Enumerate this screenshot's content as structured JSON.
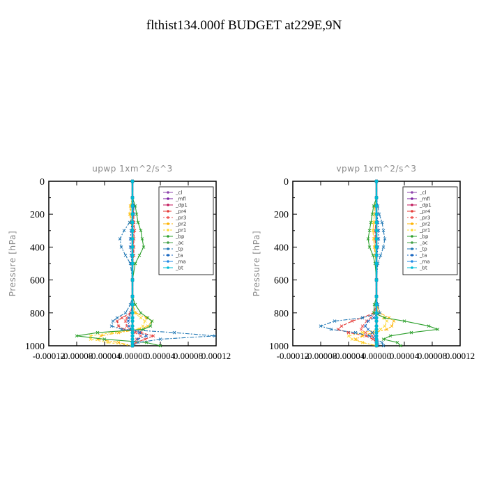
{
  "figure": {
    "title": "flthist134.000f  BUDGET at229E,9N"
  },
  "colors": {
    "_cl": "#8e44ad",
    "_mfl": "#7b1fa2",
    "_dp1": "#c2185b",
    "_pr4": "#e53935",
    "_pr3": "#ef5350",
    "_pr2": "#ffb300",
    "_pr1": "#fdd835",
    "_bp": "#2ca02c",
    "_ac": "#43a047",
    "_tp": "#1f77b4",
    "_ta": "#1565c0",
    "_ma": "#1e88e5",
    "_bt": "#00bcd4"
  },
  "chart_data": [
    {
      "type": "line",
      "title": "upwp   1xm^2/s^3",
      "ylabel": "Pressure [hPa]",
      "xlim": [
        -0.00012,
        0.00012
      ],
      "ylim": [
        0,
        1000
      ],
      "y_reversed": true,
      "xticks": [
        "-0.00012",
        "-0.00008",
        "-0.00004",
        "0.00000",
        "0.00004",
        "0.00008",
        "0.00012"
      ],
      "yticks": [
        "0",
        "200",
        "400",
        "600",
        "800",
        "1000"
      ],
      "legend": [
        "_cl",
        "_mfl",
        "_dp1",
        "_pr4",
        "_pr3",
        "_pr2",
        "_pr1",
        "_bp",
        "_ac",
        "_tp",
        "_ta",
        "_ma",
        "_bt"
      ],
      "legend_position": "top-right",
      "pressure": [
        0,
        100,
        150,
        200,
        250,
        300,
        350,
        400,
        450,
        500,
        600,
        700,
        750,
        800,
        830,
        850,
        880,
        900,
        920,
        940,
        960,
        980,
        1000
      ],
      "series": [
        {
          "name": "_cl",
          "values": [
            0,
            0,
            0,
            0,
            0,
            0,
            0,
            0,
            0,
            0,
            0,
            0,
            0,
            0,
            0,
            0,
            0,
            0,
            0,
            0,
            0,
            0,
            0
          ]
        },
        {
          "name": "_mfl",
          "values": [
            0,
            0,
            0,
            0,
            0,
            0,
            0,
            0,
            0,
            0,
            0,
            0,
            0,
            0,
            0,
            0,
            0,
            0,
            0,
            0,
            0,
            0,
            0
          ]
        },
        {
          "name": "_dp1",
          "values": [
            0,
            0,
            0,
            0,
            0,
            0,
            0,
            0,
            0,
            0,
            0,
            0,
            0,
            0,
            0,
            0,
            0,
            0,
            0,
            0,
            0,
            0,
            0
          ]
        },
        {
          "name": "_pr4",
          "values": [
            0,
            0,
            0,
            2e-06,
            2e-06,
            3e-06,
            2e-06,
            2e-06,
            2e-06,
            0,
            0,
            0,
            0,
            -3e-06,
            -1.5e-05,
            -2.2e-05,
            -2e-05,
            -1.2e-05,
            1.2e-05,
            3e-05,
            1.8e-05,
            5e-06,
            0
          ]
        },
        {
          "name": "_pr3",
          "values": [
            0,
            0,
            0,
            0,
            1e-06,
            2e-06,
            2e-06,
            1e-06,
            1e-06,
            0,
            0,
            0,
            0,
            -2e-06,
            -8e-06,
            -1e-05,
            -8e-06,
            -4e-06,
            4e-06,
            1.2e-05,
            6e-06,
            2e-06,
            0
          ]
        },
        {
          "name": "_pr2",
          "values": [
            0,
            0,
            -3e-06,
            -4e-06,
            -2e-06,
            0,
            0,
            0,
            0,
            0,
            0,
            0,
            0,
            5e-06,
            2e-05,
            2.8e-05,
            2.2e-05,
            1e-05,
            -2e-05,
            -4.5e-05,
            -5e-05,
            -2e-05,
            0
          ]
        },
        {
          "name": "_pr1",
          "values": [
            0,
            0,
            -2e-06,
            -3e-06,
            -1e-06,
            0,
            0,
            0,
            0,
            0,
            0,
            0,
            0,
            3e-06,
            1.2e-05,
            1.8e-05,
            1.5e-05,
            8e-06,
            -3e-05,
            -6e-05,
            -6e-05,
            -3.5e-05,
            0
          ]
        },
        {
          "name": "_bp",
          "values": [
            0,
            0,
            4e-06,
            6e-06,
            8e-06,
            1.2e-05,
            1.4e-05,
            1.6e-05,
            1e-05,
            4e-06,
            0,
            0,
            4e-06,
            1.2e-05,
            2.2e-05,
            2.8e-05,
            2.6e-05,
            1.6e-05,
            -5e-05,
            -8e-05,
            -4e-05,
            2e-05,
            4e-05
          ]
        },
        {
          "name": "_ac",
          "values": [
            0,
            0,
            0,
            0,
            0,
            0,
            0,
            0,
            0,
            0,
            0,
            0,
            0,
            0,
            0,
            0,
            0,
            0,
            0,
            0,
            0,
            0,
            0
          ]
        },
        {
          "name": "_tp",
          "values": [
            0,
            0,
            2e-06,
            2e-06,
            -4e-06,
            -1.2e-05,
            -1.8e-05,
            -1.6e-05,
            -1e-05,
            -3e-06,
            0,
            0,
            -3e-06,
            -1e-05,
            -2.2e-05,
            -2.8e-05,
            -3e-05,
            -1.5e-05,
            6e-05,
            0.000118,
            4e-05,
            8e-06,
            0
          ]
        },
        {
          "name": "_ta",
          "values": [
            0,
            0,
            0,
            0,
            -1e-06,
            -2e-06,
            -3e-06,
            -3e-06,
            -2e-06,
            -1e-06,
            0,
            0,
            0,
            -2e-06,
            -5e-06,
            -6e-06,
            -5e-06,
            -2e-06,
            1e-05,
            2e-05,
            8e-06,
            0,
            0
          ]
        },
        {
          "name": "_ma",
          "values": [
            0,
            0,
            0,
            0,
            0,
            0,
            0,
            0,
            0,
            0,
            0,
            0,
            0,
            0,
            0,
            0,
            0,
            0,
            0,
            0,
            0,
            0,
            0
          ]
        },
        {
          "name": "_bt",
          "values": [
            0,
            0,
            0,
            0,
            0,
            0,
            0,
            0,
            0,
            0,
            0,
            0,
            0,
            0,
            0,
            0,
            0,
            0,
            0,
            0,
            0,
            0,
            0
          ]
        }
      ]
    },
    {
      "type": "line",
      "title": "vpwp   1xm^2/s^3",
      "ylabel": "Pressure [hPa]",
      "xlim": [
        -0.00012,
        0.00012
      ],
      "ylim": [
        0,
        1000
      ],
      "y_reversed": true,
      "xticks": [
        "-0.00012",
        "-0.00008",
        "-0.00004",
        "0.00000",
        "0.00004",
        "0.00008",
        "0.00012"
      ],
      "yticks": [
        "0",
        "200",
        "400",
        "600",
        "800",
        "1000"
      ],
      "legend": [
        "_cl",
        "_mfl",
        "_dp1",
        "_pr4",
        "_pr3",
        "_pr2",
        "_pr1",
        "_bp",
        "_ac",
        "_tp",
        "_ta",
        "_ma",
        "_bt"
      ],
      "legend_position": "top-right",
      "pressure": [
        0,
        100,
        150,
        200,
        250,
        300,
        350,
        400,
        450,
        500,
        600,
        700,
        750,
        800,
        830,
        850,
        880,
        900,
        920,
        940,
        960,
        980,
        1000
      ],
      "series": [
        {
          "name": "_cl",
          "values": [
            0,
            0,
            0,
            0,
            0,
            0,
            0,
            0,
            0,
            0,
            0,
            0,
            0,
            0,
            0,
            0,
            0,
            0,
            0,
            0,
            0,
            0,
            0
          ]
        },
        {
          "name": "_mfl",
          "values": [
            0,
            0,
            0,
            0,
            0,
            0,
            0,
            0,
            0,
            0,
            0,
            0,
            0,
            0,
            0,
            0,
            0,
            0,
            0,
            0,
            0,
            0,
            0
          ]
        },
        {
          "name": "_dp1",
          "values": [
            0,
            0,
            0,
            0,
            0,
            0,
            0,
            0,
            0,
            0,
            0,
            0,
            0,
            0,
            0,
            0,
            0,
            0,
            0,
            0,
            0,
            0,
            0
          ]
        },
        {
          "name": "_pr4",
          "values": [
            0,
            0,
            0,
            0,
            -1e-06,
            -2e-06,
            -2e-06,
            -1e-06,
            0,
            0,
            0,
            0,
            0,
            -4e-06,
            -2e-05,
            -3.5e-05,
            -5e-05,
            -5.5e-05,
            -4e-05,
            -1.5e-05,
            -5e-06,
            0,
            0
          ]
        },
        {
          "name": "_pr3",
          "values": [
            0,
            0,
            0,
            0,
            0,
            -1e-06,
            -1e-06,
            0,
            0,
            0,
            0,
            0,
            0,
            -2e-06,
            -8e-06,
            -1.4e-05,
            -2e-05,
            -2.2e-05,
            -1.6e-05,
            -6e-06,
            -2e-06,
            0,
            0
          ]
        },
        {
          "name": "_pr2",
          "values": [
            0,
            0,
            -2e-06,
            -3e-06,
            -4e-06,
            -5e-06,
            -4e-06,
            -3e-06,
            -2e-06,
            0,
            0,
            0,
            0,
            5e-06,
            1.8e-05,
            2.5e-05,
            2.2e-05,
            1.5e-05,
            -5e-06,
            -2e-05,
            -3e-05,
            -2e-05,
            0
          ]
        },
        {
          "name": "_pr1",
          "values": [
            0,
            0,
            -2e-06,
            -3e-06,
            -4e-06,
            -5e-06,
            -4e-06,
            -2e-06,
            -1e-06,
            0,
            0,
            0,
            0,
            2e-06,
            1e-05,
            1.5e-05,
            1.2e-05,
            6e-06,
            -2e-05,
            -4e-05,
            -3.5e-05,
            -2e-05,
            0
          ]
        },
        {
          "name": "_bp",
          "values": [
            0,
            0,
            -4e-06,
            -6e-06,
            -8e-06,
            -1e-05,
            -1.2e-05,
            -1e-05,
            -5e-06,
            -2e-06,
            0,
            0,
            -3e-06,
            -4e-06,
            1.2e-05,
            4e-05,
            7.5e-05,
            8.8e-05,
            5e-05,
            2e-05,
            1e-05,
            3e-05,
            3.5e-05
          ]
        },
        {
          "name": "_ac",
          "values": [
            0,
            0,
            0,
            0,
            0,
            0,
            0,
            0,
            0,
            0,
            0,
            0,
            0,
            0,
            0,
            0,
            0,
            0,
            0,
            0,
            0,
            0,
            0
          ]
        },
        {
          "name": "_tp",
          "values": [
            0,
            0,
            2e-06,
            4e-06,
            8e-06,
            1e-05,
            1.2e-05,
            1e-05,
            6e-06,
            2e-06,
            0,
            0,
            2e-06,
            5e-06,
            -2e-05,
            -6e-05,
            -8e-05,
            -6.5e-05,
            -3e-05,
            -1e-05,
            0,
            8e-06,
            1e-05
          ]
        },
        {
          "name": "_ta",
          "values": [
            0,
            0,
            0,
            1e-06,
            2e-06,
            3e-06,
            3e-06,
            2e-06,
            1e-06,
            0,
            0,
            0,
            0,
            1e-06,
            -4e-06,
            -1.2e-05,
            -1.6e-05,
            -1.2e-05,
            -6e-06,
            -2e-06,
            0,
            2e-06,
            2e-06
          ]
        },
        {
          "name": "_ma",
          "values": [
            0,
            0,
            0,
            0,
            0,
            0,
            0,
            0,
            0,
            0,
            0,
            0,
            0,
            0,
            0,
            0,
            0,
            0,
            0,
            0,
            0,
            0,
            0
          ]
        },
        {
          "name": "_bt",
          "values": [
            0,
            0,
            0,
            0,
            0,
            0,
            0,
            0,
            0,
            0,
            0,
            0,
            0,
            0,
            0,
            0,
            0,
            0,
            0,
            0,
            0,
            0,
            0
          ]
        }
      ]
    }
  ]
}
